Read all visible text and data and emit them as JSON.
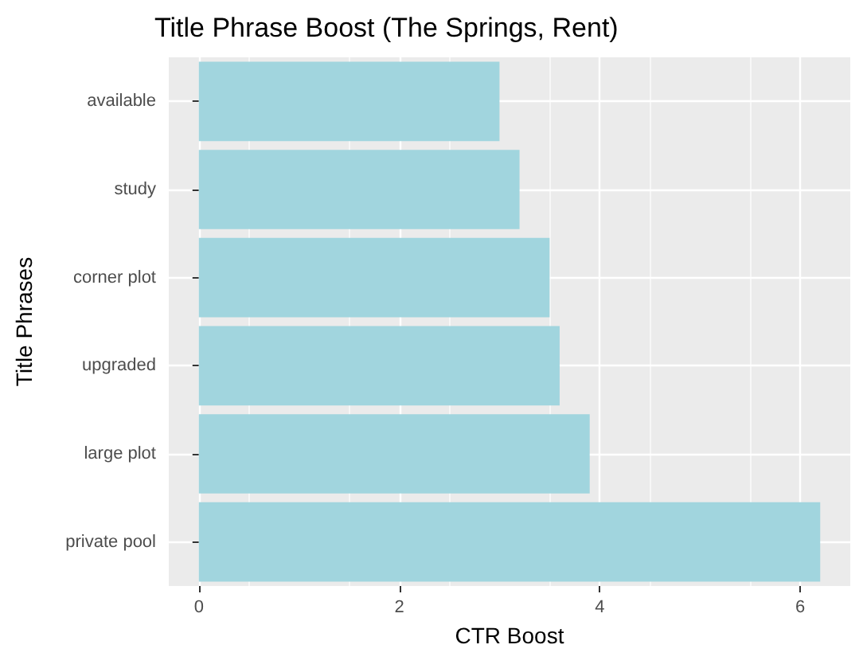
{
  "chart_data": {
    "type": "bar",
    "orientation": "horizontal",
    "title": "Title Phrase Boost (The Springs, Rent)",
    "xlabel": "CTR Boost",
    "ylabel": "Title Phrases",
    "categories": [
      "available",
      "study",
      "corner plot",
      "upgraded",
      "large plot",
      "private pool"
    ],
    "values": [
      3.0,
      3.2,
      3.5,
      3.6,
      3.9,
      6.2
    ],
    "color": "#a1d5de",
    "xlim": [
      -0.3,
      6.5
    ],
    "xticks": [
      0,
      2,
      4,
      6
    ],
    "grid": true
  }
}
